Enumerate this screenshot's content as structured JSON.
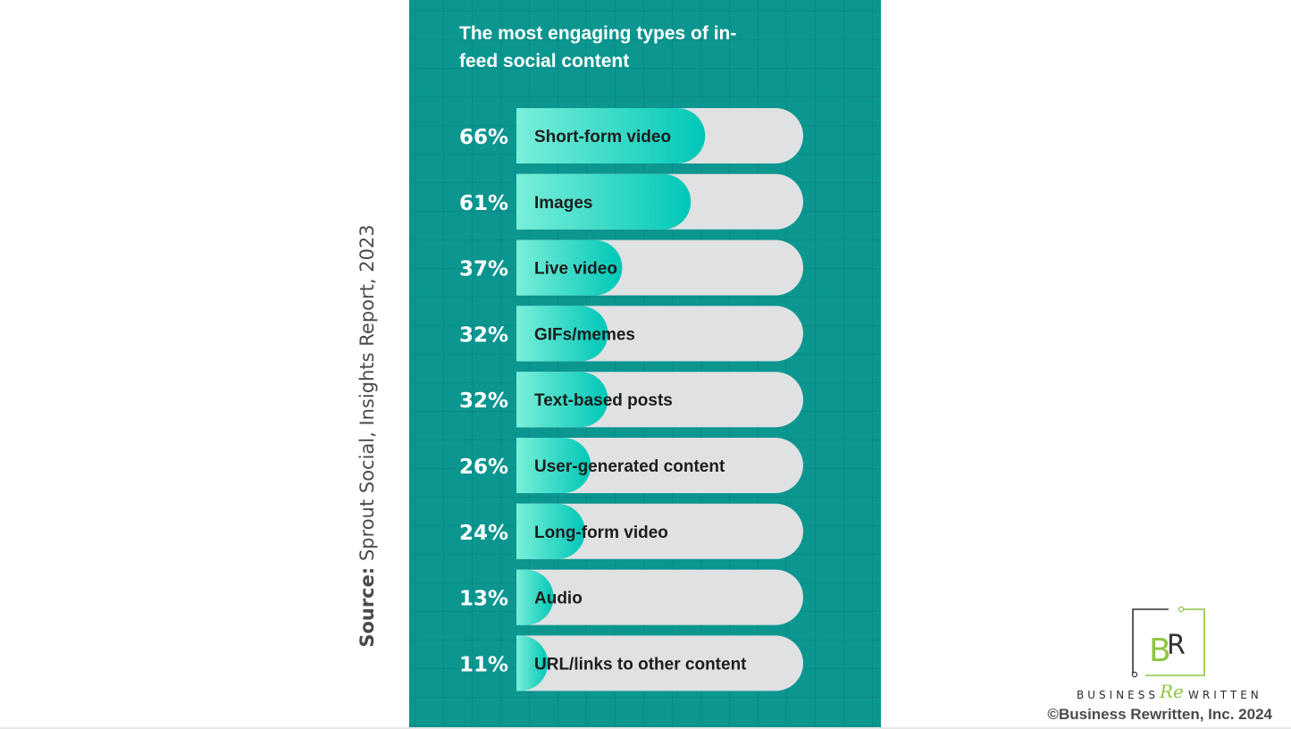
{
  "source": {
    "label": "Source:",
    "text": "Sprout Social, Insights Report, 2023"
  },
  "copyright": "©Business Rewritten, Inc. 2024",
  "brand": {
    "logo_letters": "BR",
    "word1": "BUSINESS",
    "word_re": "Re",
    "word2": "WRITTEN"
  },
  "colors": {
    "panel": "#0b9690",
    "track": "#dfe1e2",
    "bar_start": "#79efd9",
    "bar_end": "#00c7b7",
    "logo_green": "#8cc63f",
    "logo_dark": "#333333"
  },
  "chart_data": {
    "type": "bar",
    "orientation": "horizontal",
    "title": "The most engaging types of in-feed social content",
    "value_suffix": "%",
    "xlim": [
      0,
      100
    ],
    "grid": false,
    "legend": "none",
    "categories": [
      "Short-form video",
      "Images",
      "Live video",
      "GIFs/memes",
      "Text-based posts",
      "User-generated content",
      "Long-form video",
      "Audio",
      "URL/links to other content"
    ],
    "values": [
      66,
      61,
      37,
      32,
      32,
      26,
      24,
      13,
      11
    ],
    "value_labels": [
      "66%",
      "61%",
      "37%",
      "32%",
      "32%",
      "26%",
      "24%",
      "13%",
      "11%"
    ]
  }
}
